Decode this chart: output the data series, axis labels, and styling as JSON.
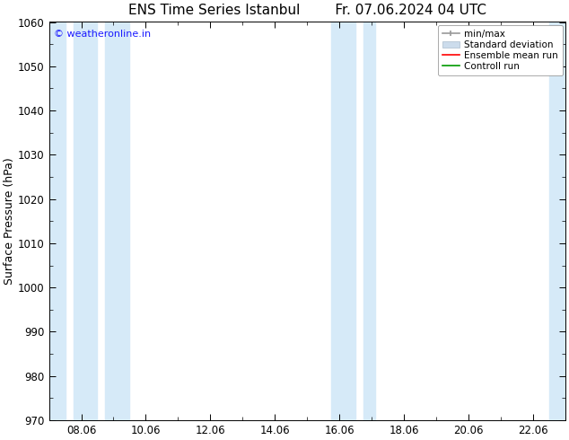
{
  "title": "ENS Time Series Istanbul",
  "title2": "Fr. 07.06.2024 04 UTC",
  "ylabel": "Surface Pressure (hPa)",
  "ylim": [
    970,
    1060
  ],
  "yticks": [
    970,
    980,
    990,
    1000,
    1010,
    1020,
    1030,
    1040,
    1050,
    1060
  ],
  "xlim": [
    0,
    16
  ],
  "xtick_labels": [
    "08.06",
    "10.06",
    "12.06",
    "14.06",
    "16.06",
    "18.06",
    "20.06",
    "22.06"
  ],
  "xtick_positions": [
    1,
    3,
    5,
    7,
    9,
    11,
    13,
    15
  ],
  "shaded_bands": [
    {
      "x_start": -0.1,
      "x_end": 0.5,
      "color": "#d6eaf8"
    },
    {
      "x_start": 0.75,
      "x_end": 1.5,
      "color": "#d6eaf8"
    },
    {
      "x_start": 1.75,
      "x_end": 2.5,
      "color": "#d6eaf8"
    },
    {
      "x_start": 8.75,
      "x_end": 9.5,
      "color": "#d6eaf8"
    },
    {
      "x_start": 9.75,
      "x_end": 10.1,
      "color": "#d6eaf8"
    },
    {
      "x_start": 15.5,
      "x_end": 16.1,
      "color": "#d6eaf8"
    }
  ],
  "watermark": "© weatheronline.in",
  "watermark_color": "#1a1aff",
  "background_color": "#ffffff",
  "legend_items": [
    "min/max",
    "Standard deviation",
    "Ensemble mean run",
    "Controll run"
  ],
  "legend_line_colors": [
    "#999999",
    "#bbccdd",
    "#ff0000",
    "#009900"
  ],
  "title_fontsize": 11,
  "tick_fontsize": 8.5,
  "ylabel_fontsize": 9
}
